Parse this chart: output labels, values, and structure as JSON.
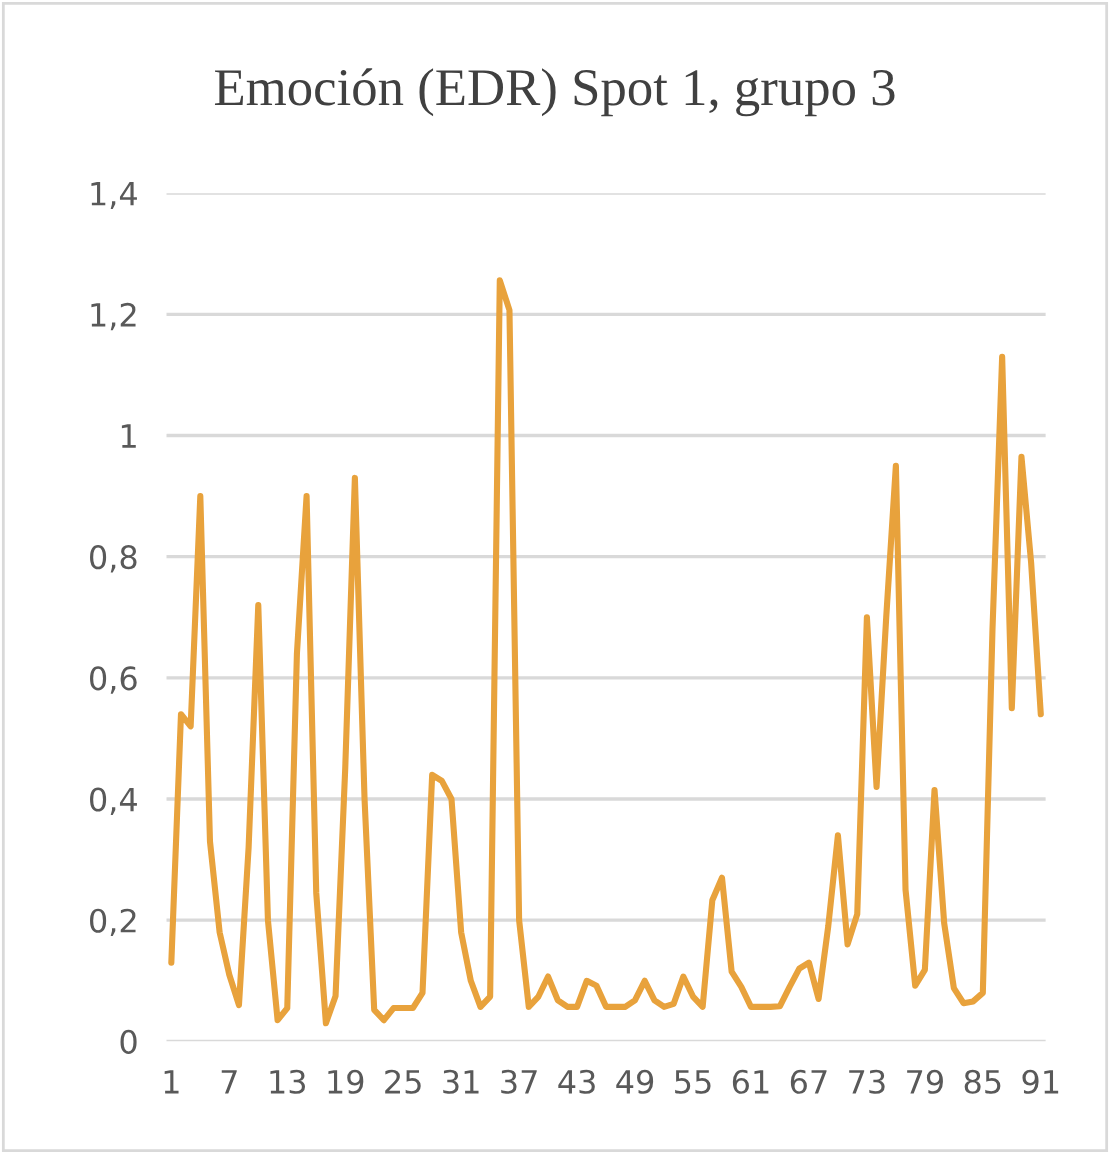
{
  "chart_data": {
    "type": "line",
    "title": "Emoción (EDR) Spot 1, grupo 3",
    "categories": [
      "1",
      null,
      null,
      null,
      null,
      null,
      "7",
      null,
      null,
      null,
      null,
      null,
      "13",
      null,
      null,
      null,
      null,
      null,
      "19",
      null,
      null,
      null,
      null,
      null,
      "25",
      null,
      null,
      null,
      null,
      null,
      "31",
      null,
      null,
      null,
      null,
      null,
      "37",
      null,
      null,
      null,
      null,
      null,
      "43",
      null,
      null,
      null,
      null,
      null,
      "49",
      null,
      null,
      null,
      null,
      null,
      "55",
      null,
      null,
      null,
      null,
      null,
      "61",
      null,
      null,
      null,
      null,
      null,
      "67",
      null,
      null,
      null,
      null,
      null,
      "73",
      null,
      null,
      null,
      null,
      null,
      "79",
      null,
      null,
      null,
      null,
      null,
      "85",
      null,
      null,
      null,
      null,
      null,
      "91"
    ],
    "series": [
      {
        "color": "#e8a23c",
        "values": [
          0.13,
          0.54,
          0.52,
          0.9,
          0.33,
          0.18,
          0.11,
          0.06,
          0.32,
          0.72,
          0.2,
          0.035,
          0.055,
          0.64,
          0.9,
          0.245,
          0.03,
          0.075,
          0.45,
          0.93,
          0.4,
          0.052,
          0.035,
          0.055,
          0.055,
          0.055,
          0.08,
          0.44,
          0.43,
          0.4,
          0.18,
          0.1,
          0.057,
          0.074,
          1.256,
          1.207,
          0.2,
          0.057,
          0.074,
          0.107,
          0.068,
          0.057,
          0.057,
          0.1,
          0.092,
          0.057,
          0.057,
          0.057,
          0.068,
          0.1,
          0.068,
          0.057,
          0.062,
          0.107,
          0.074,
          0.057,
          0.233,
          0.27,
          0.115,
          0.09,
          0.057,
          0.057,
          0.057,
          0.058,
          0.09,
          0.12,
          0.13,
          0.07,
          0.19,
          0.34,
          0.16,
          0.21,
          0.7,
          0.42,
          0.7,
          0.95,
          0.25,
          0.092,
          0.118,
          0.415,
          0.195,
          0.088,
          0.063,
          0.066,
          0.08,
          0.68,
          1.13,
          0.55,
          0.965,
          0.79,
          0.54
        ]
      }
    ],
    "ylim": [
      0,
      1.4
    ],
    "yticks": [
      {
        "value": 0,
        "label": "0"
      },
      {
        "value": 0.2,
        "label": "0,2"
      },
      {
        "value": 0.4,
        "label": "0,4"
      },
      {
        "value": 0.6,
        "label": "0,6"
      },
      {
        "value": 0.8,
        "label": "0,8"
      },
      {
        "value": 1,
        "label": "1"
      },
      {
        "value": 1.2,
        "label": "1,2"
      },
      {
        "value": 1.4,
        "label": "1,4"
      }
    ],
    "grid": "y",
    "legend": false,
    "marker": "none",
    "line_style": "solid"
  }
}
